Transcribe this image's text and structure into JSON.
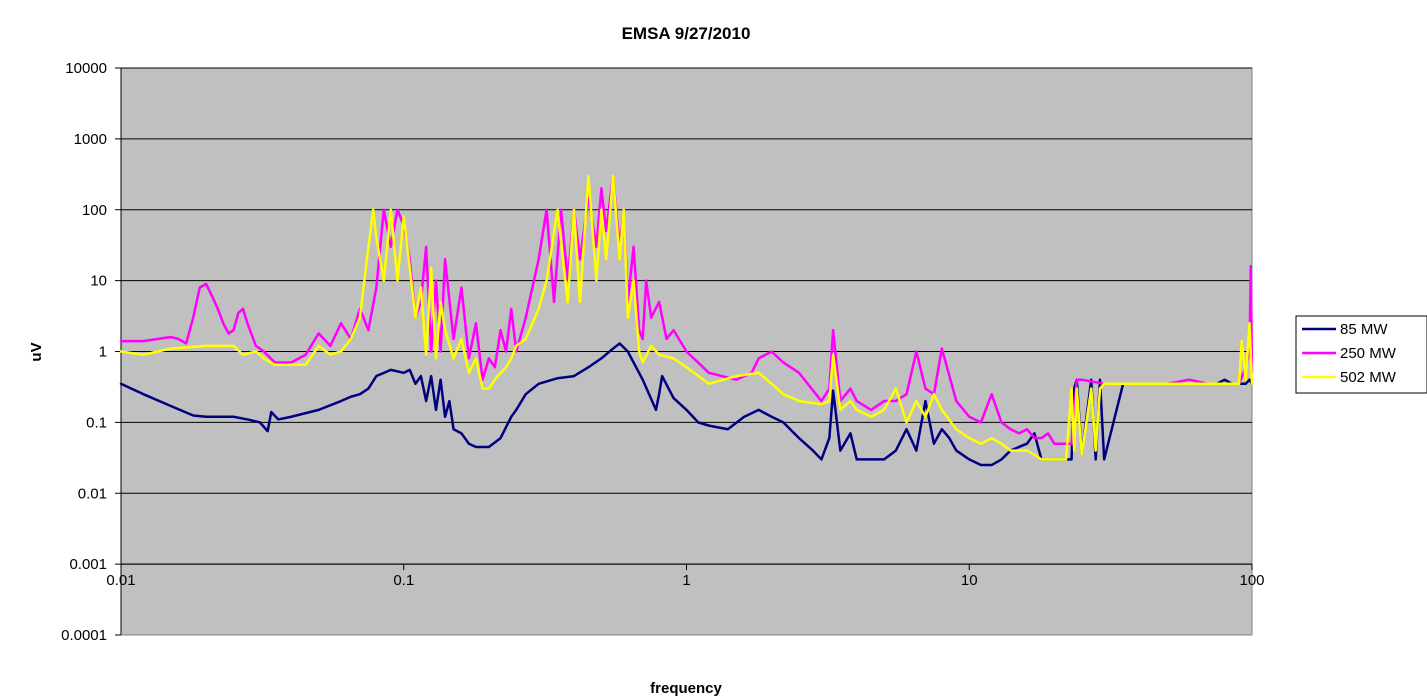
{
  "chart_data": {
    "type": "line",
    "title": "EMSA 9/27/2010",
    "xlabel": "frequency",
    "ylabel": "uV",
    "x_scale": "log",
    "y_scale": "log",
    "xlim": [
      0.01,
      100
    ],
    "ylim": [
      0.0001,
      10000
    ],
    "x_ticks": [
      0.01,
      0.1,
      1,
      10,
      100
    ],
    "x_tick_labels": [
      "0.01",
      "0.1",
      "1",
      "10",
      "100"
    ],
    "y_ticks": [
      0.0001,
      0.001,
      0.01,
      0.1,
      1,
      10,
      100,
      1000,
      10000
    ],
    "y_tick_labels": [
      "0.0001",
      "0.001",
      "0.01",
      "0.1",
      "1",
      "10",
      "100",
      "1000",
      "10000"
    ],
    "x_axis_crosses_y_at": 0.001,
    "grid": "horizontal major gridlines",
    "plot_background": "#c0c0c0",
    "legend_position": "right",
    "series": [
      {
        "name": "85 MW",
        "color": "#000080",
        "x": [
          0.01,
          0.012,
          0.015,
          0.018,
          0.02,
          0.025,
          0.028,
          0.031,
          0.033,
          0.034,
          0.036,
          0.04,
          0.05,
          0.06,
          0.065,
          0.07,
          0.075,
          0.08,
          0.09,
          0.1,
          0.105,
          0.11,
          0.115,
          0.12,
          0.125,
          0.13,
          0.135,
          0.14,
          0.145,
          0.15,
          0.16,
          0.17,
          0.18,
          0.2,
          0.22,
          0.24,
          0.25,
          0.27,
          0.3,
          0.35,
          0.4,
          0.45,
          0.5,
          0.55,
          0.58,
          0.62,
          0.7,
          0.78,
          0.8,
          0.82,
          0.9,
          1.0,
          1.1,
          1.2,
          1.4,
          1.6,
          1.8,
          2.0,
          2.2,
          2.5,
          2.8,
          3.0,
          3.2,
          3.3,
          3.5,
          3.8,
          4.0,
          4.5,
          5.0,
          5.5,
          6.0,
          6.5,
          7.0,
          7.5,
          8.0,
          8.5,
          9.0,
          10.0,
          11,
          12,
          13,
          14,
          15,
          16,
          17,
          18,
          19,
          20,
          21,
          22,
          23,
          23.5,
          24,
          25,
          27,
          28,
          29,
          30,
          35,
          40,
          45,
          50,
          55,
          60,
          65,
          70,
          75,
          80,
          85,
          90,
          95,
          98,
          100
        ],
        "y": [
          0.35,
          0.25,
          0.17,
          0.125,
          0.12,
          0.12,
          0.11,
          0.1,
          0.075,
          0.14,
          0.11,
          0.12,
          0.15,
          0.2,
          0.23,
          0.25,
          0.3,
          0.45,
          0.55,
          0.5,
          0.55,
          0.35,
          0.45,
          0.2,
          0.45,
          0.15,
          0.4,
          0.12,
          0.2,
          0.08,
          0.07,
          0.05,
          0.045,
          0.045,
          0.06,
          0.12,
          0.15,
          0.25,
          0.35,
          0.42,
          0.45,
          0.6,
          0.8,
          1.1,
          1.3,
          1.0,
          0.4,
          0.15,
          0.25,
          0.45,
          0.22,
          0.15,
          0.1,
          0.09,
          0.08,
          0.12,
          0.15,
          0.12,
          0.1,
          0.06,
          0.04,
          0.03,
          0.06,
          0.28,
          0.04,
          0.07,
          0.03,
          0.03,
          0.03,
          0.04,
          0.08,
          0.04,
          0.2,
          0.05,
          0.08,
          0.06,
          0.04,
          0.03,
          0.025,
          0.025,
          0.03,
          0.04,
          0.045,
          0.05,
          0.07,
          0.03,
          0.03,
          0.03,
          0.03,
          0.03,
          0.03,
          0.3,
          0.4,
          0.035,
          0.4,
          0.03,
          0.4,
          0.03,
          0.35,
          0.35,
          0.35,
          0.35,
          0.35,
          0.35,
          0.35,
          0.35,
          0.35,
          0.4,
          0.35,
          0.35,
          0.35,
          0.4,
          0.35
        ]
      },
      {
        "name": "250 MW",
        "color": "#ff00ff",
        "x": [
          0.01,
          0.012,
          0.015,
          0.016,
          0.017,
          0.018,
          0.019,
          0.02,
          0.021,
          0.022,
          0.023,
          0.024,
          0.025,
          0.026,
          0.027,
          0.028,
          0.03,
          0.032,
          0.035,
          0.04,
          0.045,
          0.05,
          0.055,
          0.06,
          0.065,
          0.07,
          0.075,
          0.08,
          0.085,
          0.09,
          0.095,
          0.1,
          0.105,
          0.11,
          0.115,
          0.12,
          0.125,
          0.13,
          0.135,
          0.14,
          0.15,
          0.16,
          0.17,
          0.18,
          0.19,
          0.2,
          0.21,
          0.22,
          0.23,
          0.24,
          0.25,
          0.27,
          0.3,
          0.32,
          0.34,
          0.36,
          0.38,
          0.4,
          0.42,
          0.45,
          0.48,
          0.5,
          0.52,
          0.55,
          0.58,
          0.6,
          0.62,
          0.65,
          0.68,
          0.7,
          0.72,
          0.75,
          0.8,
          0.85,
          0.9,
          1.0,
          1.2,
          1.5,
          1.7,
          1.8,
          2.0,
          2.2,
          2.5,
          3.0,
          3.2,
          3.3,
          3.5,
          3.8,
          4.0,
          4.5,
          5.0,
          5.5,
          6.0,
          6.5,
          7.0,
          7.5,
          8.0,
          9.0,
          10,
          11,
          12,
          13,
          14,
          15,
          16,
          17,
          18,
          19,
          20,
          22,
          23,
          24,
          25,
          30,
          40,
          50,
          60,
          70,
          80,
          90,
          95,
          98,
          99,
          100
        ],
        "y": [
          1.4,
          1.4,
          1.6,
          1.5,
          1.3,
          3,
          8,
          9,
          6,
          4,
          2.5,
          1.8,
          2,
          3.5,
          4,
          2.5,
          1.2,
          1.0,
          0.7,
          0.7,
          0.9,
          1.8,
          1.2,
          2.5,
          1.5,
          4,
          2,
          8,
          100,
          30,
          100,
          60,
          20,
          3,
          5,
          30,
          1,
          10,
          1,
          20,
          1.5,
          8,
          0.8,
          2.5,
          0.4,
          0.8,
          0.6,
          2,
          1,
          4,
          1,
          3,
          20,
          100,
          5,
          100,
          10,
          100,
          20,
          150,
          30,
          200,
          50,
          300,
          30,
          100,
          5,
          30,
          2,
          1.5,
          10,
          3,
          5,
          1.5,
          2,
          1,
          0.5,
          0.4,
          0.5,
          0.8,
          1.0,
          0.7,
          0.5,
          0.2,
          0.3,
          2,
          0.2,
          0.3,
          0.2,
          0.15,
          0.2,
          0.2,
          0.25,
          1.0,
          0.3,
          0.25,
          1.1,
          0.2,
          0.12,
          0.1,
          0.25,
          0.1,
          0.08,
          0.07,
          0.08,
          0.06,
          0.06,
          0.07,
          0.05,
          0.05,
          0.05,
          0.4,
          0.4,
          0.35,
          0.35,
          0.35,
          0.4,
          0.35,
          0.35,
          0.35,
          0.6,
          1.0,
          16,
          0.5
        ]
      },
      {
        "name": "502 MW",
        "color": "#ffff00",
        "x": [
          0.01,
          0.012,
          0.015,
          0.02,
          0.025,
          0.027,
          0.03,
          0.032,
          0.035,
          0.04,
          0.045,
          0.05,
          0.055,
          0.06,
          0.065,
          0.07,
          0.075,
          0.078,
          0.08,
          0.085,
          0.09,
          0.095,
          0.1,
          0.105,
          0.11,
          0.115,
          0.12,
          0.125,
          0.13,
          0.135,
          0.14,
          0.15,
          0.16,
          0.17,
          0.18,
          0.19,
          0.2,
          0.21,
          0.22,
          0.23,
          0.24,
          0.25,
          0.27,
          0.3,
          0.32,
          0.35,
          0.38,
          0.4,
          0.42,
          0.45,
          0.48,
          0.5,
          0.52,
          0.55,
          0.58,
          0.6,
          0.62,
          0.65,
          0.68,
          0.7,
          0.75,
          0.8,
          0.9,
          1.0,
          1.2,
          1.5,
          1.8,
          2.0,
          2.2,
          2.5,
          3.0,
          3.2,
          3.3,
          3.5,
          3.8,
          4.0,
          4.5,
          5.0,
          5.5,
          6.0,
          6.5,
          7.0,
          7.5,
          8.0,
          9.0,
          10,
          11,
          12,
          13,
          14,
          15,
          16,
          17,
          18,
          20,
          22,
          23,
          23.5,
          24,
          25,
          27,
          28,
          29,
          30,
          35,
          40,
          50,
          60,
          70,
          80,
          90,
          92,
          95,
          98,
          100
        ],
        "y": [
          1.0,
          0.9,
          1.1,
          1.2,
          1.2,
          0.9,
          1.0,
          0.8,
          0.65,
          0.65,
          0.65,
          1.2,
          0.9,
          1.0,
          1.5,
          3,
          30,
          100,
          40,
          10,
          100,
          10,
          80,
          15,
          3,
          8,
          0.9,
          15,
          0.8,
          5,
          2,
          0.8,
          1.5,
          0.5,
          0.8,
          0.3,
          0.3,
          0.4,
          0.5,
          0.6,
          0.8,
          1.2,
          1.5,
          4,
          10,
          100,
          5,
          100,
          5,
          300,
          10,
          100,
          20,
          300,
          20,
          100,
          3,
          10,
          1,
          0.7,
          1.2,
          0.9,
          0.8,
          0.6,
          0.35,
          0.45,
          0.5,
          0.35,
          0.25,
          0.2,
          0.18,
          0.2,
          0.9,
          0.15,
          0.2,
          0.15,
          0.12,
          0.15,
          0.3,
          0.1,
          0.2,
          0.12,
          0.25,
          0.15,
          0.08,
          0.06,
          0.05,
          0.06,
          0.05,
          0.04,
          0.04,
          0.04,
          0.035,
          0.03,
          0.03,
          0.03,
          0.3,
          0.04,
          0.3,
          0.035,
          0.3,
          0.04,
          0.3,
          0.35,
          0.35,
          0.35,
          0.35,
          0.35,
          0.35,
          0.35,
          0.35,
          1.4,
          0.4,
          2.5,
          0.35
        ]
      }
    ]
  }
}
